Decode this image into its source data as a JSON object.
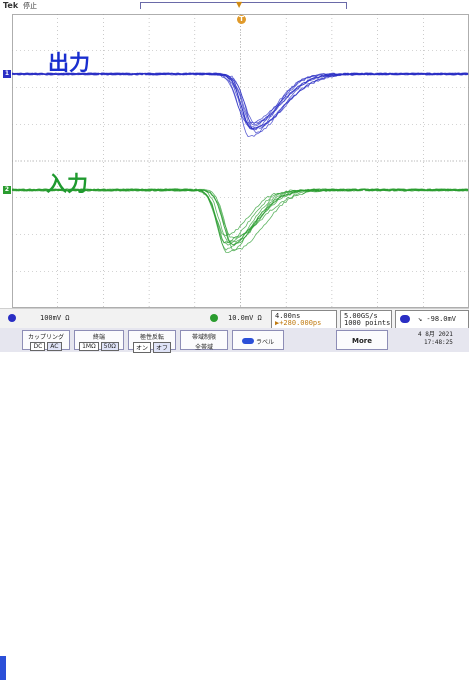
{
  "status": {
    "brand": "Tek",
    "run_state": "停止",
    "trigger_marker": "▼",
    "trigger_badge": "T"
  },
  "annotations": {
    "output": "出力",
    "input": "入力"
  },
  "channels": {
    "ch1": {
      "marker": "1",
      "color": "#2a2ec4"
    },
    "ch2": {
      "marker": "2",
      "color": "#2a9c2f"
    }
  },
  "readout": {
    "ch1_scale": "100mV Ω",
    "ch2_scale": "10.0mV Ω",
    "time_per_div": "4.00ns",
    "trigger_pos": "▶+280.000ps",
    "sample_rate": "5.00GS/s",
    "record_length": "1000 points",
    "trigger_level": "↘ -98.0mV"
  },
  "menu": {
    "coupling": {
      "title": "カップリング",
      "options": [
        "DC",
        "AC"
      ],
      "selected": "AC"
    },
    "termination": {
      "title": "終端",
      "options": [
        "1MΩ",
        "50Ω"
      ],
      "selected": "50Ω"
    },
    "invert": {
      "title": "極性反転",
      "options": [
        "オン",
        "オフ"
      ],
      "selected": "オフ"
    },
    "bandwidth": {
      "title": "帯域制限",
      "value": "全帯域"
    },
    "label_btn": "ラベル",
    "more": "More",
    "date": "4 8月 2021",
    "time": "17:48:25"
  },
  "colors": {
    "ch1": "#2a2ec4",
    "ch2": "#2a9c2f",
    "grid": "#a9a9a9",
    "menu_accent": "#2b4fd8"
  }
}
